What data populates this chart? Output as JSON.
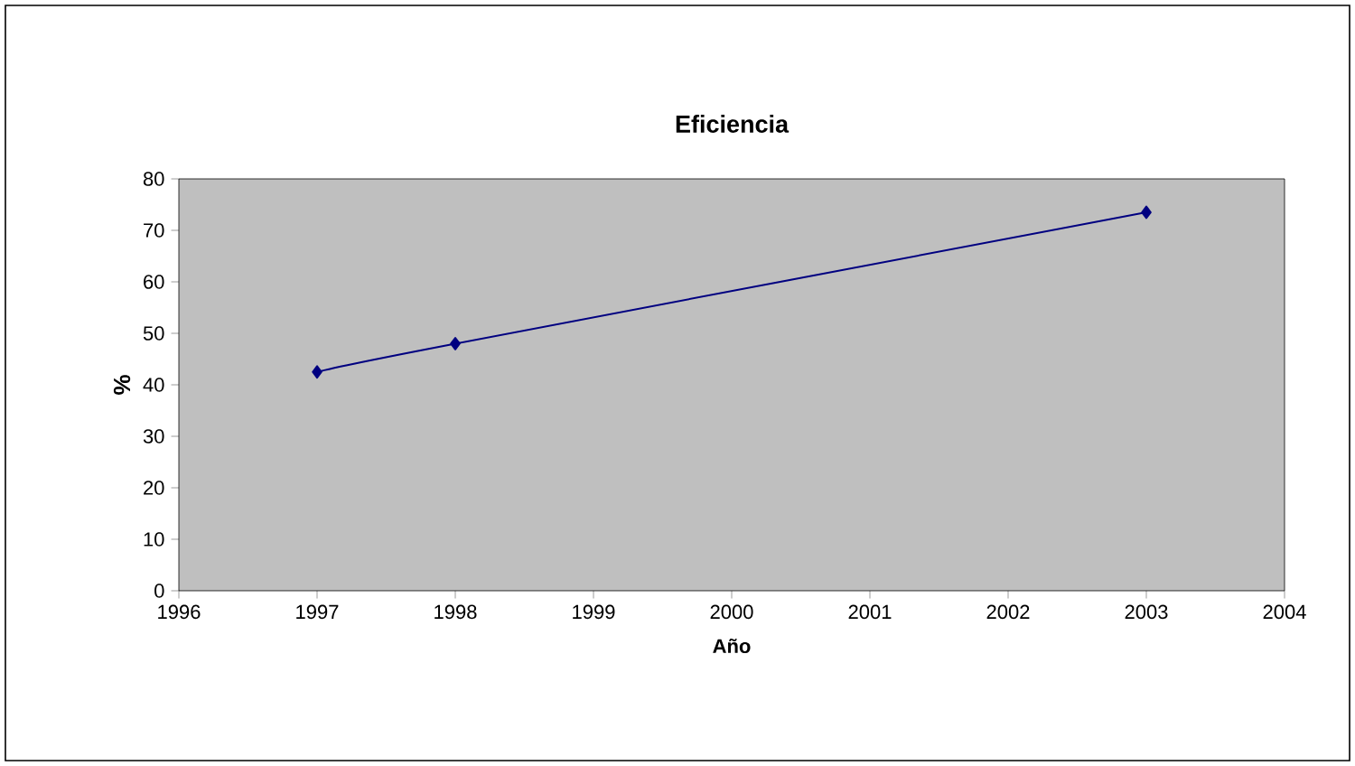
{
  "chart_data": {
    "type": "line",
    "title": "Eficiencia",
    "xlabel": "Año",
    "ylabel": "%",
    "x": [
      1997,
      1998,
      2003
    ],
    "series": [
      {
        "color": "#000080",
        "values": [
          42.5,
          48,
          73.5
        ]
      }
    ],
    "xlim": [
      1996,
      2004
    ],
    "ylim": [
      0,
      80
    ],
    "xticks": [
      1996,
      1997,
      1998,
      1999,
      2000,
      2001,
      2002,
      2003,
      2004
    ],
    "yticks": [
      0,
      10,
      20,
      30,
      40,
      50,
      60,
      70,
      80
    ],
    "marker": "diamond",
    "line_style": "solid"
  }
}
